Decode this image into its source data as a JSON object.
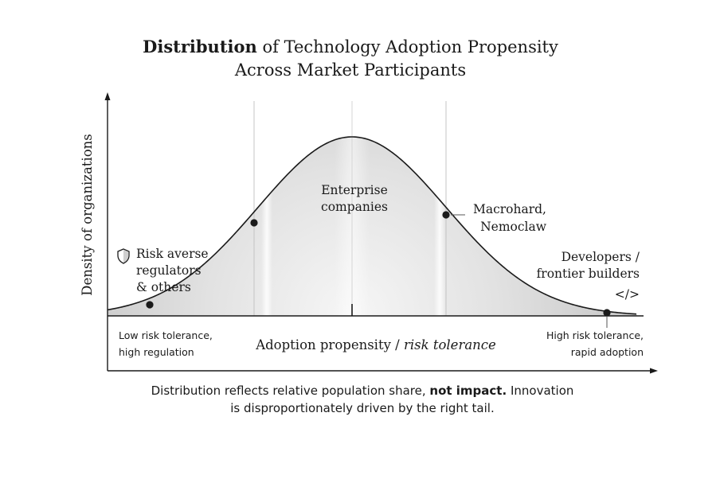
{
  "title": {
    "bold_part": "Distribution",
    "rest_line1": " of Technology Adoption Propensity",
    "line2": "Across Market Participants"
  },
  "axes": {
    "y_label": "Density of organizations",
    "x_label_plain": "Adoption propensity / ",
    "x_label_italic": "risk tolerance",
    "left_end_line1": "Low risk tolerance,",
    "left_end_line2": "high regulation",
    "right_end_line1": "High risk tolerance,",
    "right_end_line2": "rapid adoption"
  },
  "segments": {
    "regulators": {
      "line1": "Risk averse",
      "line2": "regulators",
      "line3": "& others",
      "icon": "shield-icon"
    },
    "enterprise": {
      "line1": "Enterprise",
      "line2": "companies"
    },
    "macrohard": {
      "line1": "Macrohard,",
      "line2": "Nemoclaw"
    },
    "developers": {
      "line1": "Developers /",
      "line2": "frontier builders",
      "icon_glyph": "</>",
      "icon": "code-icon"
    }
  },
  "footnote": {
    "line1_start": "Distribution reflects relative population share, ",
    "line1_bold": "not impact.",
    "line1_end": " Innovation",
    "line2": "is disproportionately driven by the right tail."
  },
  "colors": {
    "ink": "#1a1a1a",
    "guide": "#c8c8c8",
    "fill_dark": "#cfcfcf",
    "fill_light": "#ffffff"
  }
}
